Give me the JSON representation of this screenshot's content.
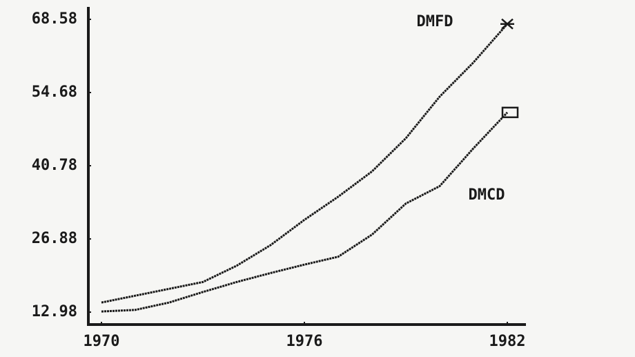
{
  "chart_data": {
    "type": "line",
    "x": [
      1970,
      1971,
      1972,
      1973,
      1974,
      1975,
      1976,
      1977,
      1978,
      1979,
      1980,
      1981,
      1982
    ],
    "series": [
      {
        "name": "DMFD",
        "color": "#1a1a1a",
        "marker": "x",
        "values": [
          14.8,
          16.1,
          17.4,
          18.7,
          21.8,
          25.7,
          30.5,
          34.9,
          39.7,
          46.0,
          53.9,
          60.4,
          67.7
        ]
      },
      {
        "name": "DMCD",
        "color": "#1a1a1a",
        "marker": "square",
        "values": [
          13.1,
          13.4,
          14.8,
          16.8,
          18.7,
          20.4,
          22.0,
          23.5,
          27.7,
          33.6,
          36.9,
          44.1,
          50.9
        ]
      }
    ],
    "xlim": [
      1970,
      1982
    ],
    "xticks": [
      1970,
      1976,
      1982
    ],
    "ylim": [
      12.98,
      68.58
    ],
    "yticks": [
      12.98,
      26.88,
      40.78,
      54.68,
      68.58
    ],
    "grid": false
  }
}
